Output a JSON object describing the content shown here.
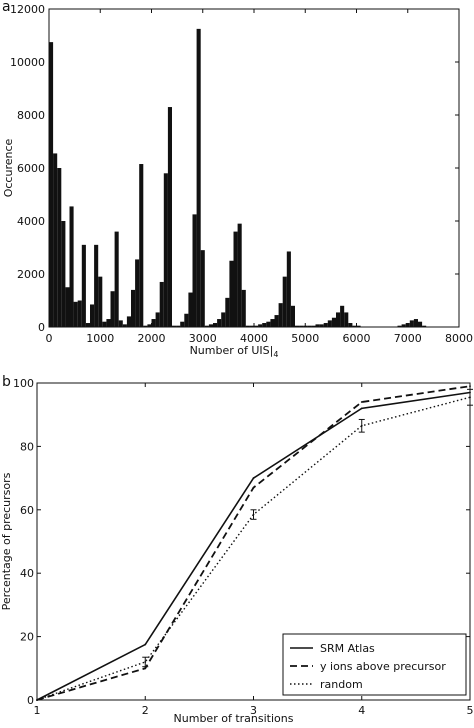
{
  "panel_labels": [
    "a",
    "b"
  ],
  "chart_data": [
    {
      "type": "bar",
      "panel": "a",
      "title": "",
      "xlabel": "Number of UIS",
      "xlabel_subscript": "4",
      "ylabel": "Occurence",
      "xlim": [
        0,
        8000
      ],
      "ylim": [
        0,
        12000
      ],
      "xticks": [
        0,
        1000,
        2000,
        3000,
        4000,
        5000,
        6000,
        7000,
        8000
      ],
      "yticks": [
        0,
        2000,
        4000,
        6000,
        8000,
        10000,
        12000
      ],
      "bin_width": 80,
      "bins": [
        {
          "x": 0,
          "y": 10750
        },
        {
          "x": 80,
          "y": 6550
        },
        {
          "x": 160,
          "y": 6000
        },
        {
          "x": 240,
          "y": 4000
        },
        {
          "x": 320,
          "y": 1500
        },
        {
          "x": 400,
          "y": 4550
        },
        {
          "x": 480,
          "y": 950
        },
        {
          "x": 560,
          "y": 1000
        },
        {
          "x": 640,
          "y": 3100
        },
        {
          "x": 720,
          "y": 150
        },
        {
          "x": 800,
          "y": 850
        },
        {
          "x": 880,
          "y": 3100
        },
        {
          "x": 960,
          "y": 1900
        },
        {
          "x": 1040,
          "y": 200
        },
        {
          "x": 1120,
          "y": 300
        },
        {
          "x": 1200,
          "y": 1350
        },
        {
          "x": 1280,
          "y": 3600
        },
        {
          "x": 1360,
          "y": 250
        },
        {
          "x": 1440,
          "y": 100
        },
        {
          "x": 1520,
          "y": 400
        },
        {
          "x": 1600,
          "y": 1400
        },
        {
          "x": 1680,
          "y": 2550
        },
        {
          "x": 1760,
          "y": 6150
        },
        {
          "x": 1840,
          "y": 50
        },
        {
          "x": 1920,
          "y": 100
        },
        {
          "x": 2000,
          "y": 300
        },
        {
          "x": 2080,
          "y": 550
        },
        {
          "x": 2160,
          "y": 1700
        },
        {
          "x": 2240,
          "y": 5800
        },
        {
          "x": 2320,
          "y": 8300
        },
        {
          "x": 2400,
          "y": 50
        },
        {
          "x": 2480,
          "y": 50
        },
        {
          "x": 2560,
          "y": 200
        },
        {
          "x": 2640,
          "y": 500
        },
        {
          "x": 2720,
          "y": 1300
        },
        {
          "x": 2800,
          "y": 4250
        },
        {
          "x": 2880,
          "y": 11250
        },
        {
          "x": 2960,
          "y": 2900
        },
        {
          "x": 3040,
          "y": 50
        },
        {
          "x": 3120,
          "y": 100
        },
        {
          "x": 3200,
          "y": 150
        },
        {
          "x": 3280,
          "y": 300
        },
        {
          "x": 3360,
          "y": 550
        },
        {
          "x": 3440,
          "y": 1100
        },
        {
          "x": 3520,
          "y": 2500
        },
        {
          "x": 3600,
          "y": 3600
        },
        {
          "x": 3680,
          "y": 3900
        },
        {
          "x": 3760,
          "y": 1400
        },
        {
          "x": 3840,
          "y": 50
        },
        {
          "x": 3920,
          "y": 50
        },
        {
          "x": 4000,
          "y": 50
        },
        {
          "x": 4080,
          "y": 100
        },
        {
          "x": 4160,
          "y": 150
        },
        {
          "x": 4240,
          "y": 200
        },
        {
          "x": 4320,
          "y": 300
        },
        {
          "x": 4400,
          "y": 450
        },
        {
          "x": 4480,
          "y": 900
        },
        {
          "x": 4560,
          "y": 1900
        },
        {
          "x": 4640,
          "y": 2850
        },
        {
          "x": 4720,
          "y": 800
        },
        {
          "x": 4800,
          "y": 50
        },
        {
          "x": 4880,
          "y": 50
        },
        {
          "x": 4960,
          "y": 50
        },
        {
          "x": 5040,
          "y": 50
        },
        {
          "x": 5120,
          "y": 50
        },
        {
          "x": 5200,
          "y": 100
        },
        {
          "x": 5280,
          "y": 100
        },
        {
          "x": 5360,
          "y": 150
        },
        {
          "x": 5440,
          "y": 250
        },
        {
          "x": 5520,
          "y": 350
        },
        {
          "x": 5600,
          "y": 550
        },
        {
          "x": 5680,
          "y": 800
        },
        {
          "x": 5760,
          "y": 550
        },
        {
          "x": 5840,
          "y": 150
        },
        {
          "x": 5920,
          "y": 50
        },
        {
          "x": 6000,
          "y": 50
        },
        {
          "x": 6800,
          "y": 50
        },
        {
          "x": 6880,
          "y": 100
        },
        {
          "x": 6960,
          "y": 150
        },
        {
          "x": 7040,
          "y": 250
        },
        {
          "x": 7120,
          "y": 300
        },
        {
          "x": 7200,
          "y": 200
        },
        {
          "x": 7280,
          "y": 50
        }
      ]
    },
    {
      "type": "line",
      "panel": "b",
      "title": "",
      "xlabel": "Number of transitions",
      "ylabel": "Percentage of precursors",
      "xlim": [
        1,
        5
      ],
      "ylim": [
        0,
        100
      ],
      "xticks": [
        1,
        2,
        3,
        4,
        5
      ],
      "yticks": [
        0,
        20,
        40,
        60,
        80,
        100
      ],
      "x": [
        1,
        2,
        3,
        4,
        5
      ],
      "legend_position": "lower-right",
      "series": [
        {
          "name": "SRM Atlas",
          "style": "solid",
          "values": [
            0,
            17.5,
            70,
            92,
            97
          ]
        },
        {
          "name": "y ions above precursor",
          "style": "dashed",
          "values": [
            0,
            10,
            67,
            94,
            99
          ]
        },
        {
          "name": "random",
          "style": "dotted",
          "values": [
            0,
            12,
            58.5,
            86.5,
            95.5
          ],
          "error": [
            0,
            1.5,
            1.5,
            2,
            2.5
          ]
        }
      ]
    }
  ]
}
